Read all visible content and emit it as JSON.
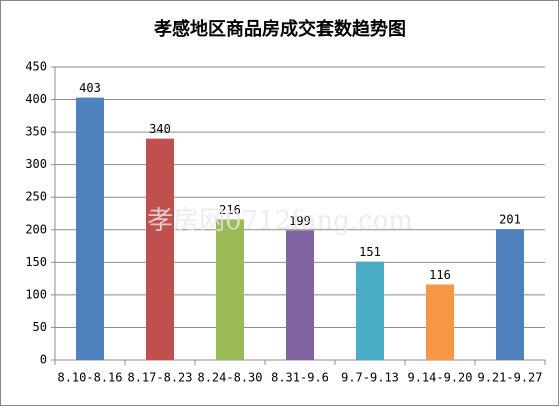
{
  "chart_data": {
    "type": "bar",
    "title": "孝感地区商品房成交套数趋势图",
    "watermark": "孝房网0712fang.com",
    "categories": [
      "8.10-8.16",
      "8.17-8.23",
      "8.24-8.30",
      "8.31-9.6",
      "9.7-9.13",
      "9.14-9.20",
      "9.21-9.27"
    ],
    "values": [
      403,
      340,
      216,
      199,
      151,
      116,
      201
    ],
    "colors": [
      "#4f81bd",
      "#c0504d",
      "#9bbb59",
      "#8064a2",
      "#4bacc6",
      "#f79646",
      "#4f81bd"
    ],
    "ylim": [
      0,
      450
    ],
    "yticks": [
      0,
      50,
      100,
      150,
      200,
      250,
      300,
      350,
      400,
      450
    ],
    "grid": true
  }
}
